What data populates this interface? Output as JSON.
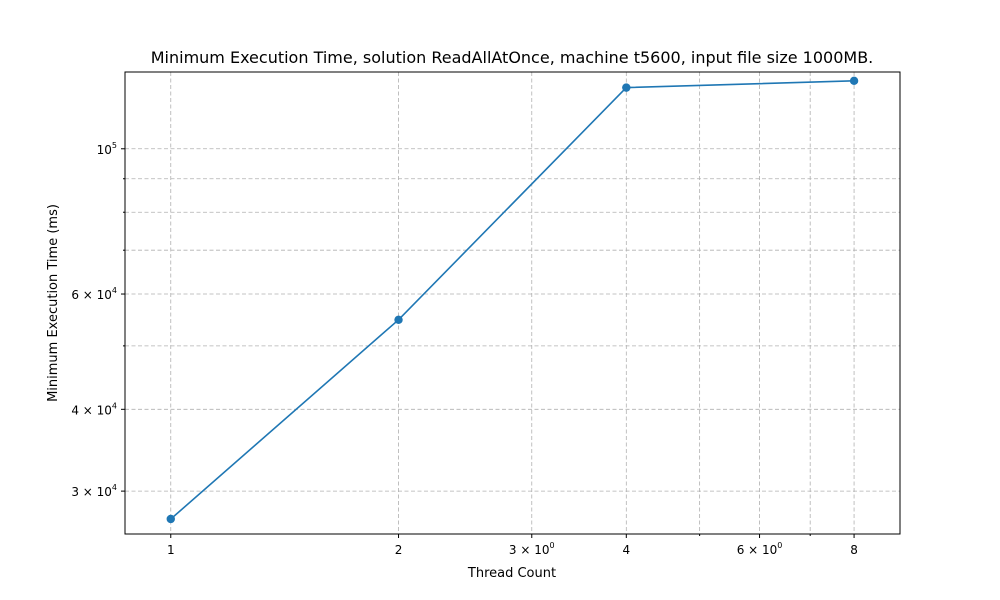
{
  "chart_data": {
    "type": "line",
    "title": "Minimum Execution Time, solution ReadAllAtOnce, machine t5600, input file size 1000MB.",
    "xlabel": "Thread Count",
    "ylabel": "Minimum Execution Time (ms)",
    "xscale": "log",
    "yscale": "log",
    "grid": "both (major and minor), dashed",
    "xlim": [
      0.87,
      9.2
    ],
    "ylim": [
      25800,
      131000
    ],
    "x_ticks": [
      {
        "value": 1,
        "label": "1",
        "sup": ""
      },
      {
        "value": 2,
        "label": "2",
        "sup": ""
      },
      {
        "value": 3,
        "label": "3 × 10",
        "sup": "0"
      },
      {
        "value": 4,
        "label": "4",
        "sup": ""
      },
      {
        "value": 6,
        "label": "6 × 10",
        "sup": "0"
      },
      {
        "value": 8,
        "label": "8",
        "sup": ""
      }
    ],
    "x_minor_ticks": [
      5,
      7
    ],
    "y_ticks": [
      {
        "value": 30000,
        "label": "3 × 10",
        "sup": "4"
      },
      {
        "value": 40000,
        "label": "4 × 10",
        "sup": "4"
      },
      {
        "value": 60000,
        "label": "6 × 10",
        "sup": "4"
      },
      {
        "value": 100000,
        "label": "10",
        "sup": "5"
      }
    ],
    "y_minor_ticks": [
      50000,
      70000,
      80000,
      90000
    ],
    "series": [
      {
        "color": "#1f77b4",
        "marker": "circle",
        "x": [
          1,
          2,
          4,
          8
        ],
        "y": [
          27200,
          54800,
          124000,
          127000
        ]
      }
    ]
  }
}
